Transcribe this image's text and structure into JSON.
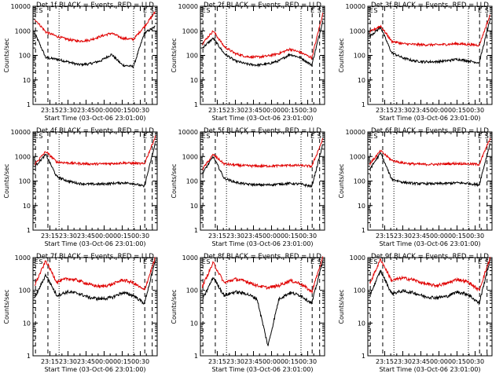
{
  "common": {
    "xlabel": "Start Time (03-Oct-06 23:01:00)",
    "ylabel": "Counts/sec",
    "xticks": [
      "23:15",
      "23:30",
      "23:45",
      "00:00",
      "00:15",
      "00:30"
    ],
    "yticks": [
      "1",
      "10",
      "100",
      "1000",
      "10000"
    ],
    "markers": [
      "E",
      "S",
      "E",
      "S"
    ]
  },
  "chart_data": [
    {
      "type": "line",
      "title": "Det 1f BLACK = Events, RED = LLD",
      "ylim": [
        1,
        10000
      ],
      "log_y": true,
      "x_minutes_start": "23:01",
      "duration_minutes": 103,
      "series": [
        {
          "name": "Events",
          "color": "#000000",
          "shape": [
            800,
            80,
            70,
            55,
            42,
            45,
            60,
            110,
            40,
            35,
            800,
            1500
          ]
        },
        {
          "name": "LLD",
          "color": "#e00000",
          "shape": [
            3000,
            900,
            600,
            450,
            380,
            420,
            600,
            800,
            500,
            450,
            1500,
            6000
          ]
        }
      ]
    },
    {
      "type": "line",
      "title": "Det 2f BLACK = Events, RED = LLD",
      "ylim": [
        1,
        10000
      ],
      "log_y": true,
      "series": [
        {
          "name": "Events",
          "color": "#000000",
          "shape": [
            200,
            500,
            120,
            60,
            45,
            40,
            45,
            60,
            110,
            80,
            40,
            2500
          ]
        },
        {
          "name": "LLD",
          "color": "#e00000",
          "shape": [
            300,
            1000,
            230,
            120,
            90,
            85,
            95,
            120,
            180,
            130,
            80,
            5000
          ]
        }
      ]
    },
    {
      "type": "line",
      "title": "Det 3f BLACK = Events, RED = LLD",
      "ylim": [
        1,
        10000
      ],
      "log_y": true,
      "series": [
        {
          "name": "Events",
          "color": "#000000",
          "shape": [
            600,
            1400,
            130,
            80,
            60,
            55,
            55,
            60,
            70,
            60,
            50,
            3000
          ]
        },
        {
          "name": "LLD",
          "color": "#e00000",
          "shape": [
            900,
            1600,
            380,
            300,
            280,
            270,
            270,
            280,
            300,
            280,
            260,
            4500
          ]
        }
      ]
    },
    {
      "type": "line",
      "title": "Det 4f BLACK = Events, RED = LLD",
      "ylim": [
        1,
        10000
      ],
      "log_y": true,
      "series": [
        {
          "name": "Events",
          "color": "#000000",
          "shape": [
            400,
            1200,
            150,
            100,
            80,
            75,
            75,
            80,
            85,
            80,
            60,
            3500
          ]
        },
        {
          "name": "LLD",
          "color": "#e00000",
          "shape": [
            500,
            1600,
            600,
            550,
            520,
            500,
            500,
            520,
            550,
            530,
            500,
            6500
          ]
        }
      ]
    },
    {
      "type": "line",
      "title": "Det 5f BLACK = Events, RED = LLD",
      "ylim": [
        1,
        10000
      ],
      "log_y": true,
      "series": [
        {
          "name": "Events",
          "color": "#000000",
          "shape": [
            200,
            1000,
            130,
            90,
            75,
            70,
            70,
            75,
            80,
            75,
            60,
            3000
          ]
        },
        {
          "name": "LLD",
          "color": "#e00000",
          "shape": [
            300,
            1200,
            500,
            450,
            420,
            410,
            410,
            420,
            440,
            430,
            400,
            5000
          ]
        }
      ]
    },
    {
      "type": "line",
      "title": "Det 6f BLACK = Events, RED = LLD",
      "ylim": [
        1,
        10000
      ],
      "log_y": true,
      "series": [
        {
          "name": "Events",
          "color": "#000000",
          "shape": [
            300,
            1400,
            120,
            90,
            80,
            78,
            78,
            80,
            85,
            80,
            70,
            3500
          ]
        },
        {
          "name": "LLD",
          "color": "#e00000",
          "shape": [
            500,
            1700,
            700,
            550,
            500,
            480,
            480,
            500,
            520,
            500,
            480,
            5500
          ]
        }
      ]
    },
    {
      "type": "line",
      "title": "Det 7f BLACK = Events, RED = LLD",
      "ylim": [
        1,
        1000
      ],
      "log_y": true,
      "series": [
        {
          "name": "Events",
          "color": "#000000",
          "shape": [
            60,
            300,
            70,
            90,
            80,
            60,
            55,
            60,
            85,
            70,
            40,
            800
          ]
        },
        {
          "name": "LLD",
          "color": "#e00000",
          "shape": [
            150,
            800,
            180,
            230,
            200,
            150,
            130,
            150,
            210,
            170,
            100,
            1000
          ]
        }
      ]
    },
    {
      "type": "line",
      "title": "Det 8f BLACK = Events, RED = LLD",
      "ylim": [
        1,
        1000
      ],
      "log_y": true,
      "series": [
        {
          "name": "Events",
          "color": "#000000",
          "shape": [
            50,
            250,
            70,
            90,
            80,
            55,
            2,
            55,
            85,
            70,
            40,
            800
          ]
        },
        {
          "name": "LLD",
          "color": "#e00000",
          "shape": [
            130,
            700,
            170,
            220,
            190,
            140,
            120,
            140,
            200,
            160,
            90,
            1000
          ]
        }
      ]
    },
    {
      "type": "line",
      "title": "Det 9f BLACK = Events, RED = LLD",
      "ylim": [
        1,
        1000
      ],
      "log_y": true,
      "series": [
        {
          "name": "Events",
          "color": "#000000",
          "shape": [
            70,
            400,
            80,
            95,
            85,
            65,
            60,
            65,
            90,
            75,
            40,
            900
          ]
        },
        {
          "name": "LLD",
          "color": "#e00000",
          "shape": [
            160,
            900,
            200,
            240,
            210,
            160,
            140,
            160,
            220,
            180,
            100,
            1000
          ]
        }
      ]
    }
  ]
}
